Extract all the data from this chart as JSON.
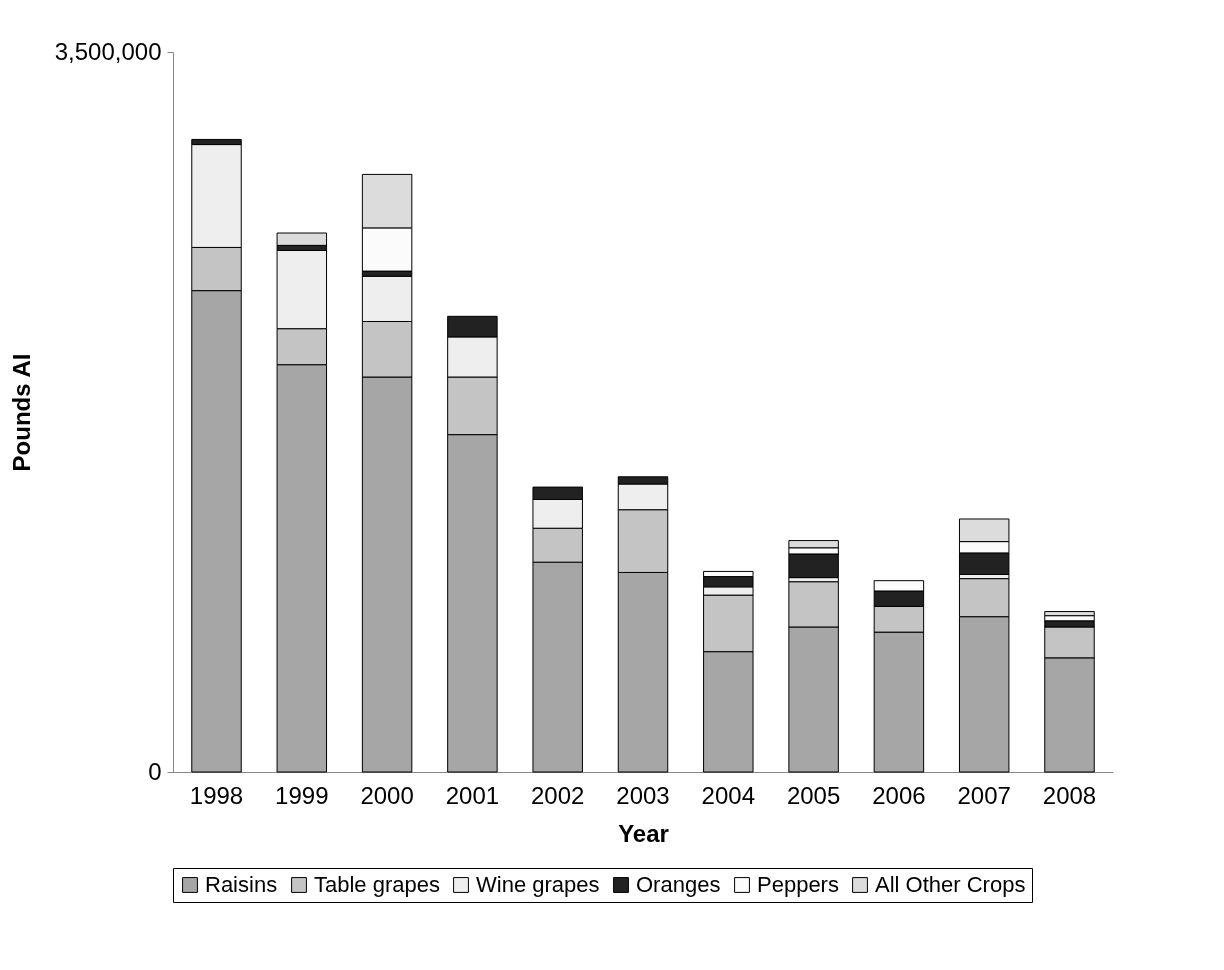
{
  "chart_data": {
    "type": "bar",
    "stacked": true,
    "xlabel": "Year",
    "ylabel": "Pounds AI",
    "categories": [
      "1998",
      "1999",
      "2000",
      "2001",
      "2002",
      "2003",
      "2004",
      "2005",
      "2006",
      "2007",
      "2008"
    ],
    "ylim": [
      0,
      3500000
    ],
    "yticks": [
      {
        "value": 0,
        "label": "0"
      },
      {
        "value": 3500000,
        "label": "3,500,000"
      }
    ],
    "grid": false,
    "legend": "bottom",
    "series": [
      {
        "name": "Raisins",
        "color": "#a6a6a6",
        "values": [
          2340000,
          1980000,
          1920000,
          1640000,
          1020000,
          970000,
          585000,
          705000,
          680000,
          755000,
          555000
        ]
      },
      {
        "name": "Table grapes",
        "color": "#c4c4c4",
        "values": [
          210000,
          175000,
          270000,
          280000,
          165000,
          305000,
          275000,
          220000,
          125000,
          185000,
          150000
        ]
      },
      {
        "name": "Wine grapes",
        "color": "#eeeeee",
        "values": [
          500000,
          380000,
          220000,
          195000,
          140000,
          125000,
          40000,
          20000,
          null,
          20000,
          null
        ]
      },
      {
        "name": "Oranges",
        "color": "#222222",
        "values": [
          25000,
          25000,
          25000,
          100000,
          60000,
          35000,
          50000,
          115000,
          75000,
          105000,
          30000
        ]
      },
      {
        "name": "Peppers",
        "color": "#fbfbfb",
        "values": [
          null,
          null,
          210000,
          null,
          null,
          null,
          25000,
          30000,
          50000,
          55000,
          25000
        ]
      },
      {
        "name": "All Other Crops",
        "color": "#dcdcdc",
        "values": [
          null,
          60000,
          260000,
          null,
          null,
          null,
          null,
          35000,
          null,
          110000,
          20000
        ]
      }
    ]
  }
}
